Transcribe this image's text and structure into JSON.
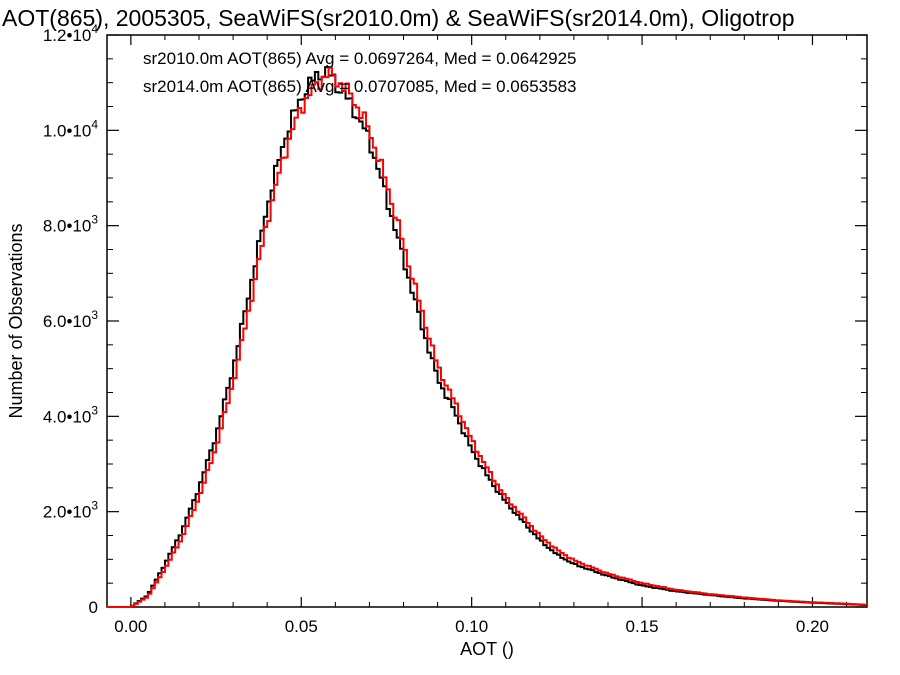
{
  "chart_data": {
    "type": "line",
    "title": "AOT(865), 2005305, SeaWiFS(sr2010.0m) & SeaWiFS(sr2014.0m), Oligotrop",
    "xlabel": "AOT ()",
    "ylabel": "Number of Observations",
    "xlim": [
      -0.007,
      0.216
    ],
    "ylim": [
      0,
      12000
    ],
    "x_ticks": [
      0.0,
      0.05,
      0.1,
      0.15,
      0.2
    ],
    "x_tick_labels": [
      "0.00",
      "0.05",
      "0.10",
      "0.15",
      "0.20"
    ],
    "y_ticks": [
      0,
      2000,
      4000,
      6000,
      8000,
      10000,
      12000
    ],
    "y_tick_labels": [
      {
        "value": 0,
        "mantissa": "0",
        "exponent": ""
      },
      {
        "value": 2000,
        "mantissa": "2.0•10",
        "exponent": "3"
      },
      {
        "value": 4000,
        "mantissa": "4.0•10",
        "exponent": "3"
      },
      {
        "value": 6000,
        "mantissa": "6.0•10",
        "exponent": "3"
      },
      {
        "value": 8000,
        "mantissa": "8.0•10",
        "exponent": "3"
      },
      {
        "value": 10000,
        "mantissa": "1.0•10",
        "exponent": "4"
      },
      {
        "value": 12000,
        "mantissa": "1.2•10",
        "exponent": "4"
      }
    ],
    "grid": false,
    "legend_placement": "top-left",
    "series": [
      {
        "name": "sr2010.0m AOT(865) Avg = 0.0697264, Med = 0.0642925",
        "color": "#000000",
        "x": [
          0.0,
          0.005,
          0.01,
          0.015,
          0.02,
          0.025,
          0.03,
          0.035,
          0.04,
          0.045,
          0.05,
          0.055,
          0.058,
          0.06,
          0.065,
          0.07,
          0.075,
          0.08,
          0.085,
          0.09,
          0.095,
          0.1,
          0.105,
          0.11,
          0.115,
          0.12,
          0.125,
          0.13,
          0.14,
          0.15,
          0.16,
          0.17,
          0.18,
          0.19,
          0.2,
          0.21,
          0.216
        ],
        "y": [
          0,
          250,
          900,
          1600,
          2500,
          3600,
          5000,
          6700,
          8400,
          9800,
          10700,
          11200,
          11200,
          11000,
          10500,
          9800,
          8600,
          7300,
          6000,
          4800,
          4100,
          3300,
          2700,
          2200,
          1800,
          1400,
          1100,
          900,
          650,
          450,
          330,
          250,
          180,
          130,
          90,
          60,
          40
        ]
      },
      {
        "name": "sr2014.0m AOT(865) Avg = 0.0707085, Med = 0.0653583",
        "color": "#ff0000",
        "x": [
          0.0,
          0.005,
          0.01,
          0.015,
          0.02,
          0.025,
          0.03,
          0.035,
          0.04,
          0.045,
          0.05,
          0.055,
          0.058,
          0.06,
          0.065,
          0.07,
          0.075,
          0.08,
          0.085,
          0.09,
          0.095,
          0.1,
          0.105,
          0.11,
          0.115,
          0.12,
          0.125,
          0.13,
          0.14,
          0.15,
          0.16,
          0.17,
          0.18,
          0.19,
          0.2,
          0.21,
          0.216
        ],
        "y": [
          0,
          220,
          800,
          1450,
          2300,
          3350,
          4700,
          6350,
          8100,
          9500,
          10500,
          11000,
          11200,
          11100,
          10700,
          10000,
          8900,
          7600,
          6300,
          5050,
          4300,
          3500,
          2850,
          2300,
          1900,
          1500,
          1200,
          980,
          700,
          500,
          360,
          270,
          200,
          140,
          100,
          70,
          45
        ]
      }
    ]
  }
}
